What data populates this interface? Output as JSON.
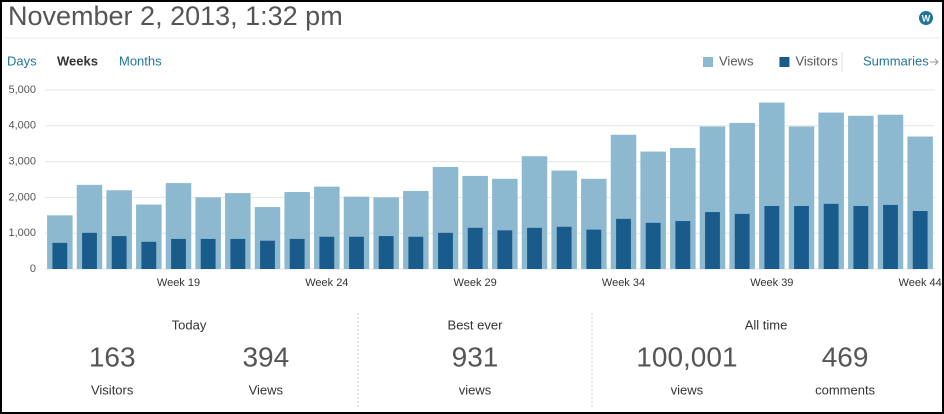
{
  "header": {
    "title": "November 2, 2013, 1:32 pm"
  },
  "tabs": [
    "Days",
    "Weeks",
    "Months"
  ],
  "summaries_link": "Summaries",
  "chart_data": {
    "type": "bar",
    "categories": [
      null,
      null,
      null,
      null,
      "Week 19",
      null,
      null,
      null,
      null,
      "Week 24",
      null,
      null,
      null,
      null,
      "Week 29",
      null,
      null,
      null,
      null,
      "Week 34",
      null,
      null,
      null,
      null,
      "Week 39",
      null,
      null,
      null,
      null,
      "Week 44"
    ],
    "series": [
      {
        "name": "Views",
        "color": "#8cb9cf",
        "values": [
          1500,
          2350,
          2200,
          1800,
          2400,
          2000,
          2120,
          1730,
          2150,
          2300,
          2020,
          2000,
          2180,
          2850,
          2600,
          2520,
          3150,
          2750,
          2520,
          3750,
          3280,
          3380,
          3980,
          4080,
          4650,
          3980,
          4370,
          4280,
          4310,
          3700
        ]
      },
      {
        "name": "Visitors",
        "color": "#195b8b",
        "values": [
          730,
          1010,
          920,
          760,
          840,
          840,
          840,
          790,
          840,
          900,
          900,
          920,
          900,
          1010,
          1150,
          1080,
          1150,
          1180,
          1100,
          1400,
          1290,
          1340,
          1590,
          1540,
          1760,
          1760,
          1820,
          1760,
          1790,
          1620
        ]
      }
    ],
    "ylim": [
      0,
      5000
    ],
    "yticks": [
      0,
      {
        "value": 1000,
        "label": "1,000"
      },
      {
        "value": 2000,
        "label": "2,000"
      },
      {
        "value": 3000,
        "label": "3,000"
      },
      {
        "value": 4000,
        "label": "4,000"
      },
      {
        "value": 5000,
        "label": "5,000"
      }
    ],
    "grid": true
  },
  "stats": [
    {
      "heading": "Today",
      "items": [
        {
          "value": "163",
          "label": "Visitors"
        },
        {
          "value": "394",
          "label": "Views"
        }
      ]
    },
    {
      "heading": "Best ever",
      "items": [
        {
          "value": "931",
          "label": "views"
        }
      ]
    },
    {
      "heading": "All time",
      "items": [
        {
          "value": "100,001",
          "label": "views"
        },
        {
          "value": "469",
          "label": "comments"
        }
      ]
    }
  ]
}
